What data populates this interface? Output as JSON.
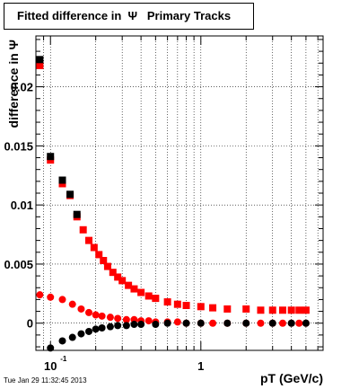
{
  "chart_data": {
    "type": "scatter",
    "title": "Fitted difference in  Ψ   Primary Tracks",
    "xlabel": "pT (GeV/c)",
    "ylabel": "difference in Ψ",
    "x_scale": "log",
    "xlim": [
      0.08,
      6.5
    ],
    "ylim": [
      -0.0023,
      0.0243
    ],
    "grid": true,
    "x_tick_labels": [
      {
        "value": 0.1,
        "base": "10",
        "exp": "-1"
      },
      {
        "value": 1,
        "base": "1",
        "exp": ""
      }
    ],
    "y_ticks": [
      0,
      0.005,
      0.01,
      0.015,
      0.02
    ],
    "y_tick_labels": [
      "0",
      "0.005",
      "0.01",
      "0.015",
      "0.02"
    ],
    "series": [
      {
        "color": "#ff0000",
        "marker": "square",
        "x": [
          0.085,
          0.1,
          0.12,
          0.135,
          0.15,
          0.165,
          0.18,
          0.195,
          0.21,
          0.225,
          0.24,
          0.26,
          0.28,
          0.3,
          0.33,
          0.36,
          0.4,
          0.45,
          0.5,
          0.6,
          0.7,
          0.8,
          1.0,
          1.2,
          1.5,
          2.0,
          2.5,
          3.0,
          3.5,
          4.0,
          4.5,
          5.0
        ],
        "y": [
          0.0218,
          0.0138,
          0.0118,
          0.0108,
          0.009,
          0.0079,
          0.007,
          0.0064,
          0.0058,
          0.0053,
          0.0048,
          0.0043,
          0.0039,
          0.0036,
          0.0032,
          0.0029,
          0.0026,
          0.0023,
          0.0021,
          0.0018,
          0.0016,
          0.0015,
          0.0014,
          0.0013,
          0.0012,
          0.0012,
          0.0011,
          0.0011,
          0.0011,
          0.0011,
          0.0011,
          0.0011
        ]
      },
      {
        "color": "#000000",
        "marker": "square",
        "x": [
          0.085,
          0.1,
          0.12,
          0.135,
          0.15
        ],
        "y": [
          0.0223,
          0.0141,
          0.0121,
          0.0109,
          0.0092
        ]
      },
      {
        "color": "#ff0000",
        "marker": "circle",
        "x": [
          0.085,
          0.1,
          0.12,
          0.14,
          0.16,
          0.18,
          0.2,
          0.22,
          0.25,
          0.28,
          0.32,
          0.36,
          0.4,
          0.45,
          0.5,
          0.6,
          0.7,
          0.8,
          1.0,
          1.2,
          1.5,
          2.0,
          2.5,
          3.0,
          3.5,
          4.0,
          4.5,
          5.0
        ],
        "y": [
          0.0024,
          0.0022,
          0.002,
          0.0016,
          0.0012,
          0.0009,
          0.0007,
          0.0006,
          0.0005,
          0.0004,
          0.0003,
          0.0003,
          0.0002,
          0.0002,
          0.0001,
          0.0001,
          0.0001,
          0.0,
          0.0,
          0.0,
          0.0,
          0.0,
          0.0,
          0.0,
          0.0,
          0.0,
          0.0,
          0.0
        ]
      },
      {
        "color": "#000000",
        "marker": "circle",
        "x": [
          0.1,
          0.12,
          0.14,
          0.16,
          0.18,
          0.2,
          0.22,
          0.25,
          0.28,
          0.32,
          0.36,
          0.4,
          0.5,
          0.6,
          0.8,
          1.0,
          1.5,
          2.0,
          3.0,
          4.0,
          5.0
        ],
        "y": [
          -0.0021,
          -0.0015,
          -0.0012,
          -0.0009,
          -0.0007,
          -0.0005,
          -0.0004,
          -0.0003,
          -0.0002,
          -0.0002,
          -0.0001,
          -0.0001,
          -0.0001,
          0.0,
          0.0,
          0.0,
          0.0,
          0.0,
          0.0,
          0.0,
          0.0
        ]
      }
    ]
  },
  "footer": {
    "timestamp": "Tue Jan 29 11:32:45 2013"
  }
}
